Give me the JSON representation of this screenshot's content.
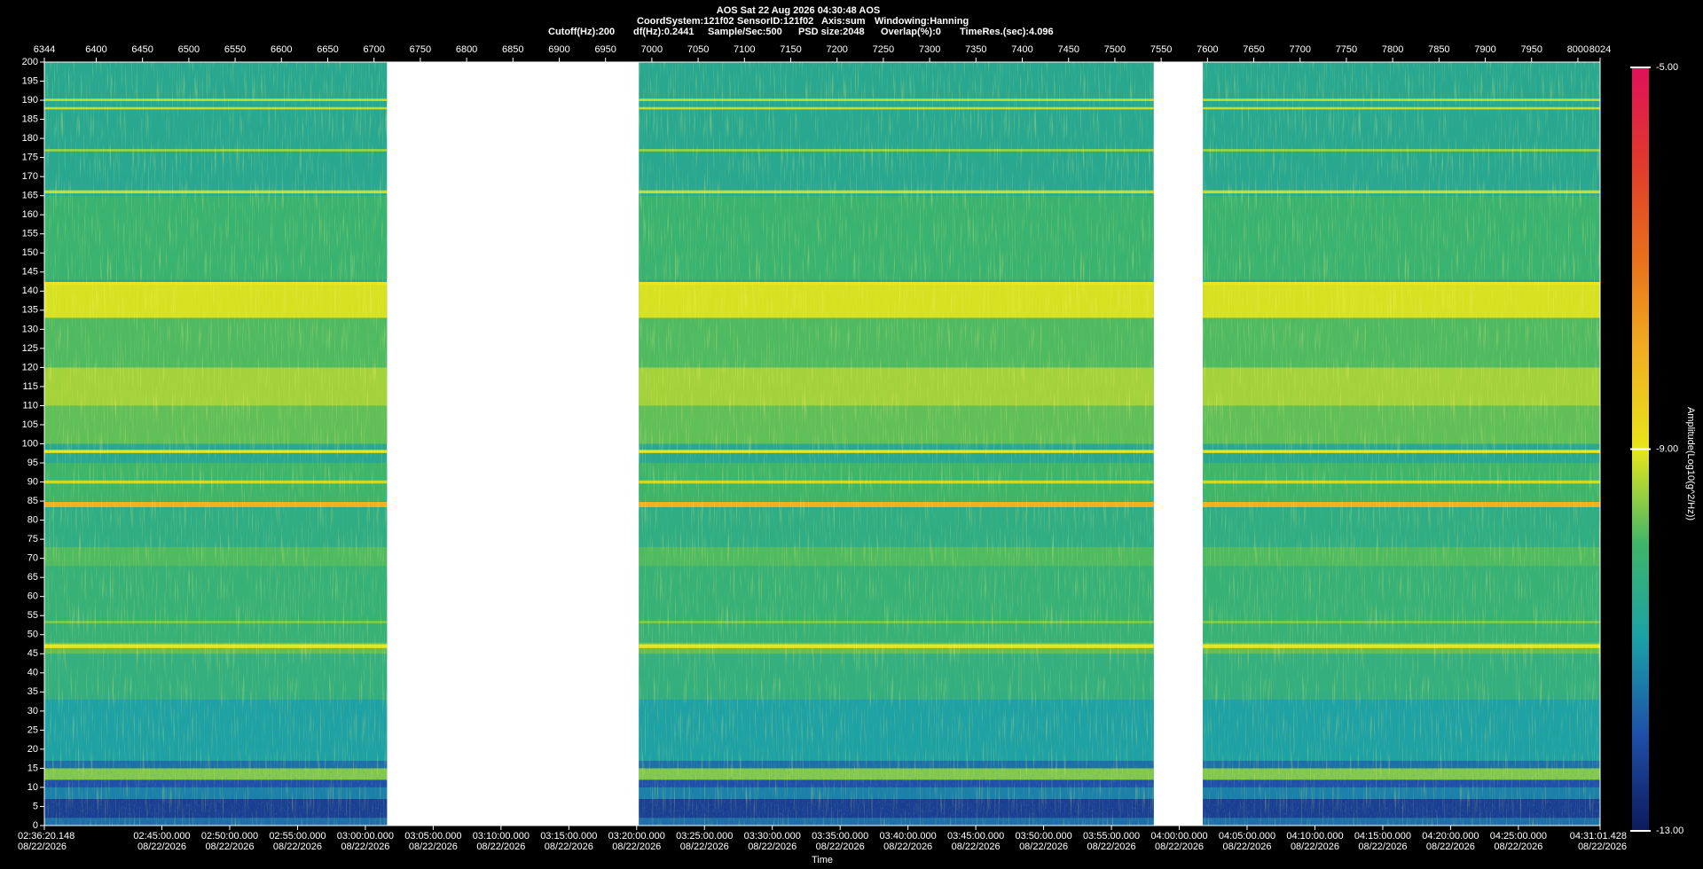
{
  "chart_data": {
    "type": "spectrogram",
    "title": "AOS  Sat 22 Aug 2026 04:30:48  AOS",
    "subtitle_lines": [
      [
        "CoordSystem:121f02",
        "SensorID:121f02",
        "Axis:sum",
        "Windowing:Hanning"
      ],
      [
        "Cutoff(Hz):200",
        "df(Hz):0.2441",
        "Sample/Sec:500",
        "PSD size:2048",
        "Overlap(%):0",
        "TimeRes.(sec):4.096"
      ]
    ],
    "xlabel": "Time",
    "colorbar_label": "Amplitude(Log10(g^2/Hz))",
    "xlim": [
      6344,
      8024
    ],
    "xticks": [
      6344,
      6400,
      6450,
      6500,
      6550,
      6600,
      6650,
      6700,
      6750,
      6800,
      6850,
      6900,
      6950,
      7000,
      7050,
      7100,
      7150,
      7200,
      7250,
      7300,
      7350,
      7400,
      7450,
      7500,
      7550,
      7600,
      7650,
      7700,
      7750,
      7800,
      7850,
      7900,
      7950,
      8000,
      8024
    ],
    "x2lim": [
      9380.148,
      16261.428
    ],
    "x2ticks": [
      {
        "value": 9380.148,
        "label": "02:36:20.148",
        "date": "08/22/2026"
      },
      {
        "value": 9900,
        "label": "02:45:00.000",
        "date": "08/22/2026"
      },
      {
        "value": 10200,
        "label": "02:50:00.000",
        "date": "08/22/2026"
      },
      {
        "value": 10500,
        "label": "02:55:00.000",
        "date": "08/22/2026"
      },
      {
        "value": 10800,
        "label": "03:00:00.000",
        "date": "08/22/2026"
      },
      {
        "value": 11100,
        "label": "03:05:00.000",
        "date": "08/22/2026"
      },
      {
        "value": 11400,
        "label": "03:10:00.000",
        "date": "08/22/2026"
      },
      {
        "value": 11700,
        "label": "03:15:00.000",
        "date": "08/22/2026"
      },
      {
        "value": 12000,
        "label": "03:20:00.000",
        "date": "08/22/2026"
      },
      {
        "value": 12300,
        "label": "03:25:00.000",
        "date": "08/22/2026"
      },
      {
        "value": 12600,
        "label": "03:30:00.000",
        "date": "08/22/2026"
      },
      {
        "value": 12900,
        "label": "03:35:00.000",
        "date": "08/22/2026"
      },
      {
        "value": 13200,
        "label": "03:40:00.000",
        "date": "08/22/2026"
      },
      {
        "value": 13500,
        "label": "03:45:00.000",
        "date": "08/22/2026"
      },
      {
        "value": 13800,
        "label": "03:50:00.000",
        "date": "08/22/2026"
      },
      {
        "value": 14100,
        "label": "03:55:00.000",
        "date": "08/22/2026"
      },
      {
        "value": 14400,
        "label": "04:00:00.000",
        "date": "08/22/2026"
      },
      {
        "value": 14700,
        "label": "04:05:00.000",
        "date": "08/22/2026"
      },
      {
        "value": 15000,
        "label": "04:10:00.000",
        "date": "08/22/2026"
      },
      {
        "value": 15300,
        "label": "04:15:00.000",
        "date": "08/22/2026"
      },
      {
        "value": 15600,
        "label": "04:20:00.000",
        "date": "08/22/2026"
      },
      {
        "value": 15900,
        "label": "04:25:00.000",
        "date": "08/22/2026"
      },
      {
        "value": 16261.428,
        "label": "04:31:01.428",
        "date": "08/22/2026"
      }
    ],
    "ylim": [
      0,
      200
    ],
    "yticks": [
      0,
      5,
      10,
      15,
      20,
      25,
      30,
      35,
      40,
      45,
      50,
      55,
      60,
      65,
      70,
      75,
      80,
      85,
      90,
      95,
      100,
      105,
      110,
      115,
      120,
      125,
      130,
      135,
      140,
      145,
      150,
      155,
      160,
      165,
      170,
      175,
      180,
      185,
      190,
      195,
      200
    ],
    "zlim": [
      -13,
      -5
    ],
    "zticks": [
      {
        "value": -13,
        "label": "-13.00"
      },
      {
        "value": -9,
        "label": "-9.00"
      },
      {
        "value": -5,
        "label": "-5.00"
      }
    ],
    "colorscale": [
      [
        -13,
        "#0d1a5c"
      ],
      [
        -12,
        "#1f4fa8"
      ],
      [
        -11,
        "#1aa0a8"
      ],
      [
        -10,
        "#3fb56a"
      ],
      [
        -9,
        "#e8e61a"
      ],
      [
        -8,
        "#f0b020"
      ],
      [
        -7,
        "#e8701c"
      ],
      [
        -6,
        "#e03a2c"
      ],
      [
        -5,
        "#e0105a"
      ]
    ],
    "segments": [
      [
        6344,
        6714
      ],
      [
        6986,
        7542
      ],
      [
        7595,
        8024
      ]
    ],
    "background_amplitude": -10.6,
    "bands": [
      {
        "freq": [
          0,
          2
        ],
        "amplitude": -11.6
      },
      {
        "freq": [
          2,
          7
        ],
        "amplitude": -12.3
      },
      {
        "freq": [
          7,
          10
        ],
        "amplitude": -11.4
      },
      {
        "freq": [
          10,
          12
        ],
        "amplitude": -12
      },
      {
        "freq": [
          12,
          15
        ],
        "amplitude": -9.6
      },
      {
        "freq": [
          15,
          17
        ],
        "amplitude": -11.6
      },
      {
        "freq": [
          17,
          33
        ],
        "amplitude": -10.9
      },
      {
        "freq": [
          33,
          45
        ],
        "amplitude": -10.3
      },
      {
        "freq": [
          45,
          48
        ],
        "amplitude": -9.8
      },
      {
        "freq": [
          48,
          68
        ],
        "amplitude": -10.2
      },
      {
        "freq": [
          68,
          73
        ],
        "amplitude": -9.9
      },
      {
        "freq": [
          73,
          83
        ],
        "amplitude": -10.4
      },
      {
        "freq": [
          85,
          95
        ],
        "amplitude": -10
      },
      {
        "freq": [
          100,
          110
        ],
        "amplitude": -9.8
      },
      {
        "freq": [
          110,
          120
        ],
        "amplitude": -9.4
      },
      {
        "freq": [
          120,
          133
        ],
        "amplitude": -9.9
      },
      {
        "freq": [
          133,
          142
        ],
        "amplitude": -9.1
      },
      {
        "freq": [
          143,
          165
        ],
        "amplitude": -10.1
      },
      {
        "freq": [
          46.5,
          47.5
        ],
        "amplitude": -9
      },
      {
        "freq": [
          53,
          53.6
        ],
        "amplitude": -9.6
      },
      {
        "freq": [
          83.4,
          84.8
        ],
        "amplitude": -8
      },
      {
        "freq": [
          89.6,
          90.4
        ],
        "amplitude": -9.2
      },
      {
        "freq": [
          97.6,
          98.4
        ],
        "amplitude": -9
      },
      {
        "freq": [
          141.6,
          142.4
        ],
        "amplitude": -9
      },
      {
        "freq": [
          165.6,
          166.4
        ],
        "amplitude": -9.2
      },
      {
        "freq": [
          176.6,
          177.2
        ],
        "amplitude": -9.4
      },
      {
        "freq": [
          187.6,
          188.2
        ],
        "amplitude": -9.2
      },
      {
        "freq": [
          189.8,
          190.4
        ],
        "amplitude": -9.2
      }
    ]
  }
}
